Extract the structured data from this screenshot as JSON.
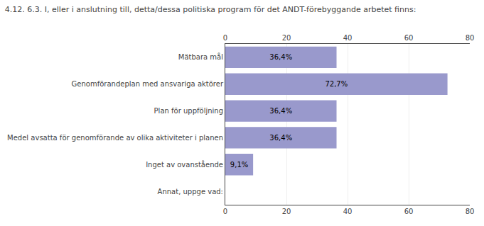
{
  "chart_data": {
    "type": "bar",
    "orientation": "horizontal",
    "title": "4.12. 6.3. I, eller i anslutning till, detta/dessa politiska program för det ANDT-förebyggande arbetet finns:",
    "categories": [
      "Mätbara mål",
      "Genomförandeplan med ansvariga aktörer",
      "Plan för uppföljning",
      "Medel avsatta för genomförande av olika aktiviteter i planen",
      "Inget av ovanstående",
      "Annat, uppge vad:"
    ],
    "values": [
      36.4,
      72.7,
      36.4,
      36.4,
      9.1,
      0.0
    ],
    "value_labels": [
      "36,4%",
      "72,7%",
      "36,4%",
      "36,4%",
      "9,1%",
      null
    ],
    "data_labels": true,
    "color": "#9999cc",
    "xlim": [
      0,
      80
    ],
    "xticks": [
      0,
      20,
      40,
      60,
      80
    ],
    "grid": true
  }
}
